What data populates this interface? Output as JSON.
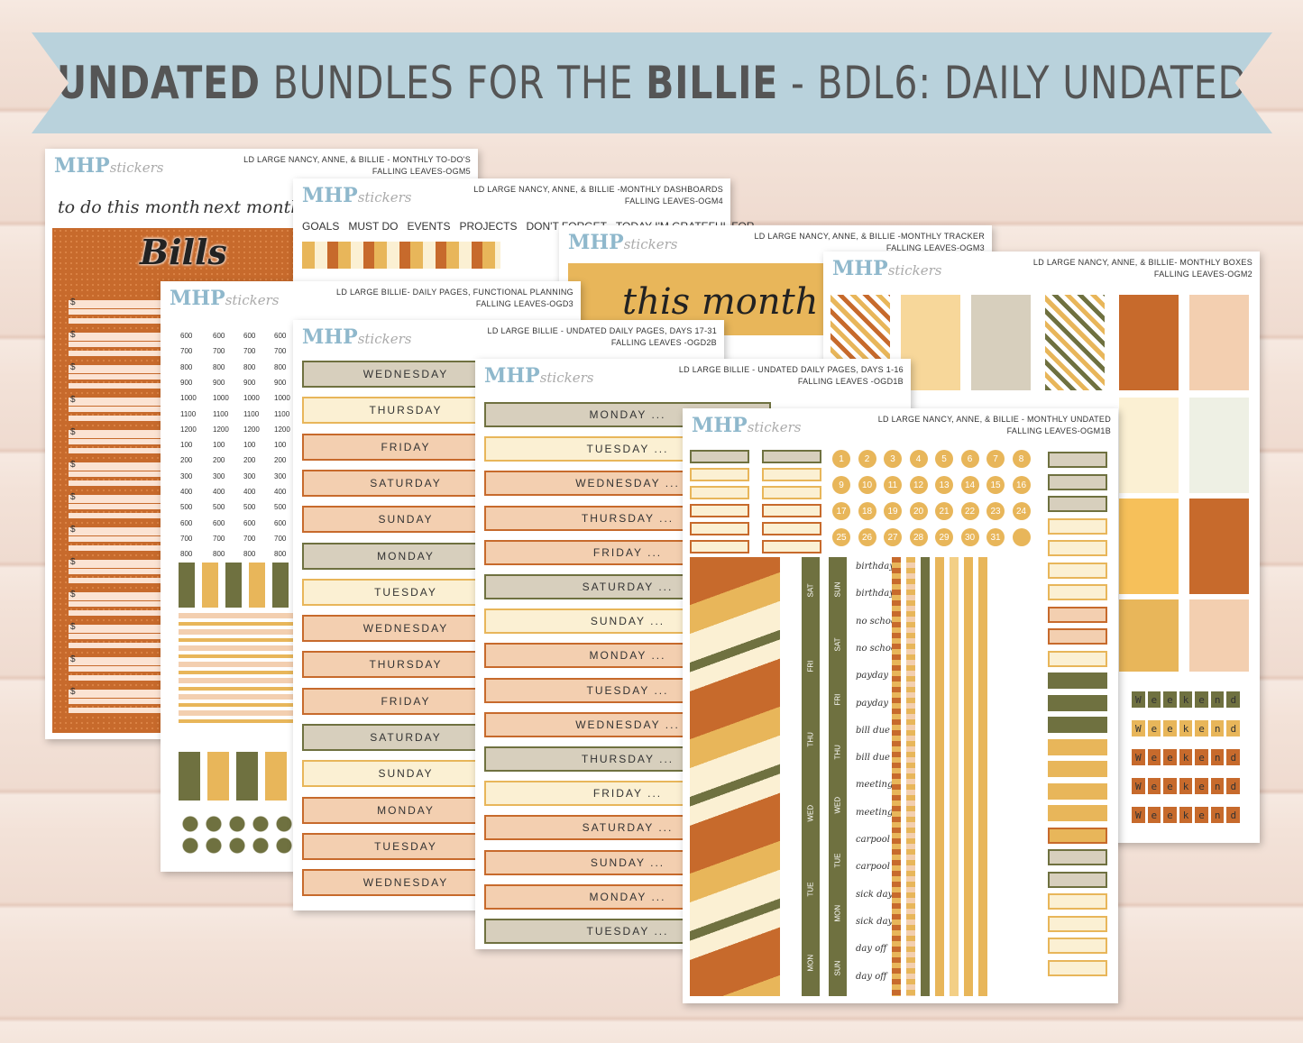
{
  "banner": {
    "part1": "UNDATED",
    "part2": " BUNDLES FOR THE ",
    "part3": "BILLIE",
    "part4": " - BDL6: DAILY UNDATED"
  },
  "brand": {
    "main": "MHP",
    "sub": "stickers"
  },
  "sheets": {
    "todo": {
      "title1": "LD LARGE NANCY, ANNE, & BILLIE - MONTHLY TO-DO'S",
      "title2": "FALLING LEAVES-OGM5",
      "h1": "to do this month",
      "h2": "next month",
      "bills": "Bills",
      "dollar": "$"
    },
    "dash": {
      "title1": "LD LARGE NANCY, ANNE, & BILLIE -MONTHLY DASHBOARDS",
      "title2": "FALLING LEAVES-OGM4",
      "tabs": [
        "GOALS",
        "MUST DO",
        "EVENTS",
        "PROJECTS",
        "DON'T FORGET",
        "TODAY I'M GRATEFUL FOR"
      ]
    },
    "tracker": {
      "title1": "LD LARGE NANCY, ANNE, & BILLIE -MONTHLY TRACKER",
      "title2": "FALLING LEAVES-OGM3",
      "big": "this month"
    },
    "boxes": {
      "title1": "LD LARGE NANCY, ANNE, & BILLIE- MONTHLY BOXES",
      "title2": "FALLING LEAVES-OGM2",
      "weekend": [
        "W",
        "e",
        "e",
        "k",
        "e",
        "n",
        "d"
      ]
    },
    "func": {
      "title1": "LD LARGE BILLIE- DAILY PAGES, FUNCTIONAL PLANNING",
      "title2": "FALLING LEAVES-OGD3",
      "times": [
        "600",
        "700",
        "800",
        "900",
        "1000",
        "1100",
        "1200",
        "100",
        "200",
        "300",
        "400",
        "500",
        "600",
        "700",
        "800"
      ]
    },
    "d17": {
      "title1": "LD LARGE BILLIE - UNDATED DAILY PAGES, DAYS 17-31",
      "title2": "FALLING LEAVES -OGD2B",
      "days": [
        "WEDNESDAY",
        "THURSDAY",
        "FRIDAY",
        "SATURDAY",
        "SUNDAY",
        "MONDAY",
        "TUESDAY",
        "WEDNESDAY",
        "THURSDAY",
        "FRIDAY",
        "SATURDAY",
        "SUNDAY",
        "MONDAY",
        "TUESDAY",
        "WEDNESDAY"
      ]
    },
    "d1": {
      "title1": "LD LARGE BILLIE  - UNDATED DAILY PAGES, DAYS 1-16",
      "title2": "FALLING LEAVES -OGD1B",
      "days": [
        "MONDAY ...",
        "TUESDAY ...",
        "WEDNESDAY ...",
        "THURSDAY ...",
        "FRIDAY ...",
        "SATURDAY ...",
        "SUNDAY ...",
        "MONDAY ...",
        "TUESDAY ...",
        "WEDNESDAY ...",
        "THURSDAY ...",
        "FRIDAY ...",
        "SATURDAY ...",
        "SUNDAY ...",
        "MONDAY ...",
        "TUESDAY ..."
      ]
    },
    "mu": {
      "title1": "LD LARGE NANCY, ANNE, & BILLIE - MONTHLY UNDATED",
      "title2": "FALLING LEAVES-OGM1B",
      "nums": [
        "1",
        "2",
        "3",
        "4",
        "5",
        "6",
        "7",
        "8",
        "9",
        "10",
        "11",
        "12",
        "13",
        "14",
        "15",
        "16",
        "17",
        "18",
        "19",
        "20",
        "21",
        "22",
        "23",
        "24",
        "25",
        "26",
        "27",
        "28",
        "29",
        "30",
        "31"
      ],
      "col1": [
        "SAT",
        "FRI",
        "THU",
        "WED",
        "TUE",
        "MON"
      ],
      "col2": [
        "SUN",
        "SAT",
        "FRI",
        "THU",
        "WED",
        "TUE",
        "MON",
        "SUN"
      ],
      "labels": [
        "birthday",
        "birthday",
        "no school",
        "no school",
        "payday",
        "payday",
        "bill due",
        "bill due",
        "meeting",
        "meeting",
        "carpool",
        "carpool",
        "sick day",
        "sick day",
        "day off",
        "day off"
      ]
    }
  },
  "colors": {
    "olive": "#6f7140",
    "rust": "#c76a2c",
    "mustard": "#e8b65a",
    "cream": "#fbf0d3",
    "peach": "#f3cfb0",
    "tan": "#d7cfbd",
    "blue": "#b9d2dc"
  }
}
